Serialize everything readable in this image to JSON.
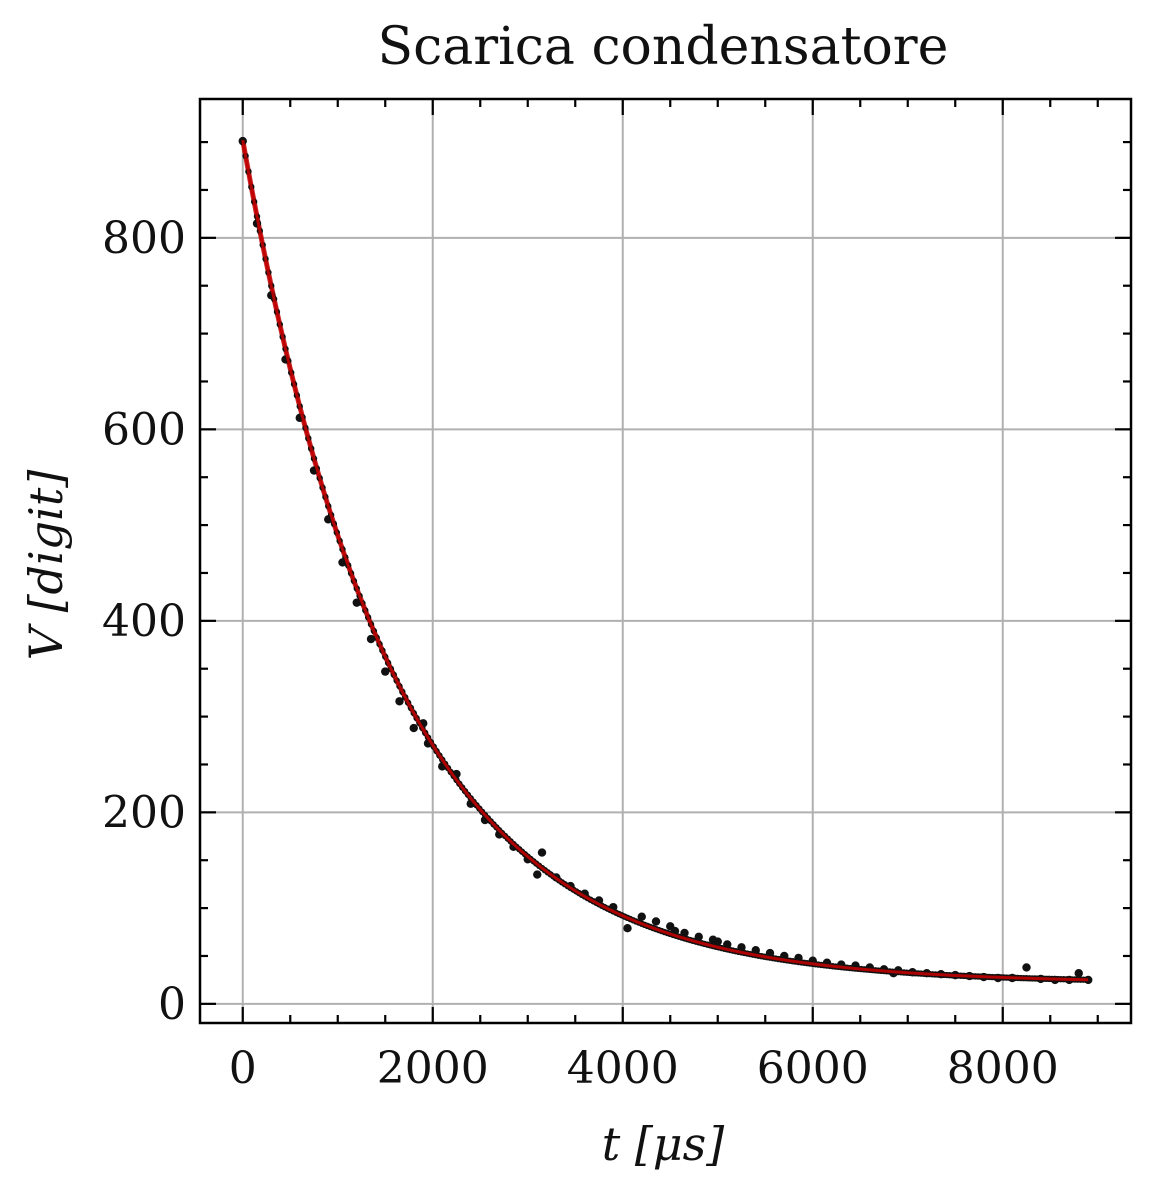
{
  "chart_data": {
    "type": "scatter",
    "title": "Scarica condensatore",
    "xlabel": "t [μs]",
    "ylabel": "V [digit]",
    "xlim": [
      -450,
      9350
    ],
    "ylim": [
      -20,
      945
    ],
    "xticks": [
      0,
      2000,
      4000,
      6000,
      8000
    ],
    "yticks": [
      0,
      200,
      400,
      600,
      800
    ],
    "x_minor_step": 500,
    "y_minor_step": 50,
    "grid": true,
    "series": [
      {
        "kind": "points",
        "color": "#111111",
        "x": [
          0,
          150,
          300,
          450,
          600,
          750,
          900,
          1050,
          1200,
          1350,
          1500,
          1650,
          1800,
          1900,
          1950,
          2100,
          2250,
          2400,
          2550,
          2700,
          2850,
          3000,
          3100,
          3150,
          3300,
          3450,
          3600,
          3750,
          3900,
          4050,
          4200,
          4350,
          4500,
          4550,
          4650,
          4800,
          4950,
          5000,
          5100,
          5250,
          5400,
          5550,
          5700,
          5850,
          6000,
          6150,
          6300,
          6450,
          6600,
          6750,
          6850,
          6900,
          7050,
          7200,
          7350,
          7500,
          7650,
          7800,
          7950,
          8100,
          8250,
          8400,
          8550,
          8700,
          8800,
          8900
        ],
        "y": [
          901,
          815,
          740,
          673,
          612,
          557,
          506,
          461,
          419,
          381,
          347,
          316,
          288,
          293,
          272,
          248,
          240,
          209,
          192,
          177,
          164,
          151,
          135,
          158,
          132,
          123,
          115,
          108,
          101,
          79,
          91,
          86,
          81,
          76,
          74,
          70,
          67,
          65,
          62,
          59,
          56,
          53,
          50,
          48,
          45,
          43,
          41,
          40,
          38,
          36,
          32,
          35,
          33,
          32,
          31,
          30,
          29,
          28,
          27,
          27,
          38,
          26,
          25,
          25,
          32,
          25
        ]
      },
      {
        "kind": "fit",
        "color": "#c00000",
        "model": "V(t) = A * exp(-t / tau) + B",
        "A": 880,
        "tau": 1580,
        "B": 22,
        "x_range": [
          0,
          8900
        ]
      }
    ]
  }
}
